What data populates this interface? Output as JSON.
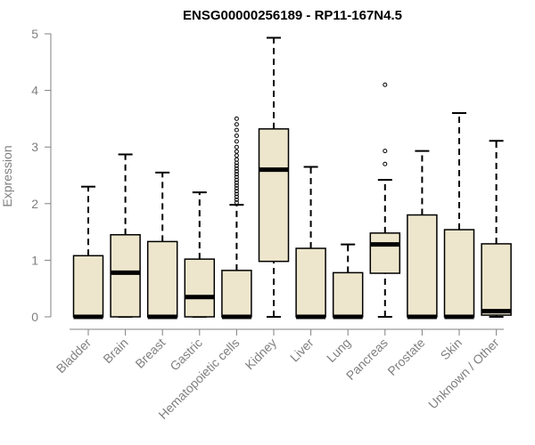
{
  "chart_data": {
    "type": "boxplot",
    "title": "ENSG00000256189 - RP11-167N4.5",
    "xlabel": "",
    "ylabel": "Expression",
    "ylim": [
      0,
      5
    ],
    "yticks": [
      0,
      1,
      2,
      3,
      4,
      5
    ],
    "grid": false,
    "colors": {
      "box_fill": "#ede6cc",
      "box_stroke": "#000000",
      "axis": "#808080"
    },
    "categories": [
      "Bladder",
      "Brain",
      "Breast",
      "Gastric",
      "Hematopoietic cells",
      "Kidney",
      "Liver",
      "Lung",
      "Pancreas",
      "Prostate",
      "Skin",
      "Unknown / Other"
    ],
    "boxes": [
      {
        "min": 0,
        "q1": 0,
        "median": 0,
        "q3": 1.08,
        "max": 2.3,
        "outliers": []
      },
      {
        "min": 0,
        "q1": 0,
        "median": 0.78,
        "q3": 1.45,
        "max": 2.87,
        "outliers": []
      },
      {
        "min": 0,
        "q1": 0,
        "median": 0,
        "q3": 1.33,
        "max": 2.55,
        "outliers": []
      },
      {
        "min": 0,
        "q1": 0,
        "median": 0.35,
        "q3": 1.02,
        "max": 2.2,
        "outliers": []
      },
      {
        "min": 0,
        "q1": 0,
        "median": 0,
        "q3": 0.82,
        "max": 1.98,
        "outliers": [
          2.02,
          2.07,
          2.12,
          2.17,
          2.22,
          2.27,
          2.32,
          2.37,
          2.42,
          2.47,
          2.52,
          2.57,
          2.62,
          2.67,
          2.72,
          2.78,
          2.85,
          2.92,
          3.0,
          3.1,
          3.2,
          3.3,
          3.4,
          3.5
        ]
      },
      {
        "min": 0,
        "q1": 0.98,
        "median": 2.6,
        "q3": 3.32,
        "max": 4.93,
        "outliers": []
      },
      {
        "min": 0,
        "q1": 0,
        "median": 0,
        "q3": 1.21,
        "max": 2.65,
        "outliers": []
      },
      {
        "min": 0,
        "q1": 0,
        "median": 0,
        "q3": 0.78,
        "max": 1.28,
        "outliers": []
      },
      {
        "min": 0,
        "q1": 0.77,
        "median": 1.28,
        "q3": 1.48,
        "max": 2.42,
        "outliers": [
          2.7,
          2.93,
          4.1
        ]
      },
      {
        "min": 0,
        "q1": 0,
        "median": 0,
        "q3": 1.8,
        "max": 2.93,
        "outliers": []
      },
      {
        "min": 0,
        "q1": 0,
        "median": 0,
        "q3": 1.54,
        "max": 3.6,
        "outliers": []
      },
      {
        "min": 0,
        "q1": 0.03,
        "median": 0.1,
        "q3": 1.29,
        "max": 3.11,
        "outliers": []
      }
    ]
  }
}
